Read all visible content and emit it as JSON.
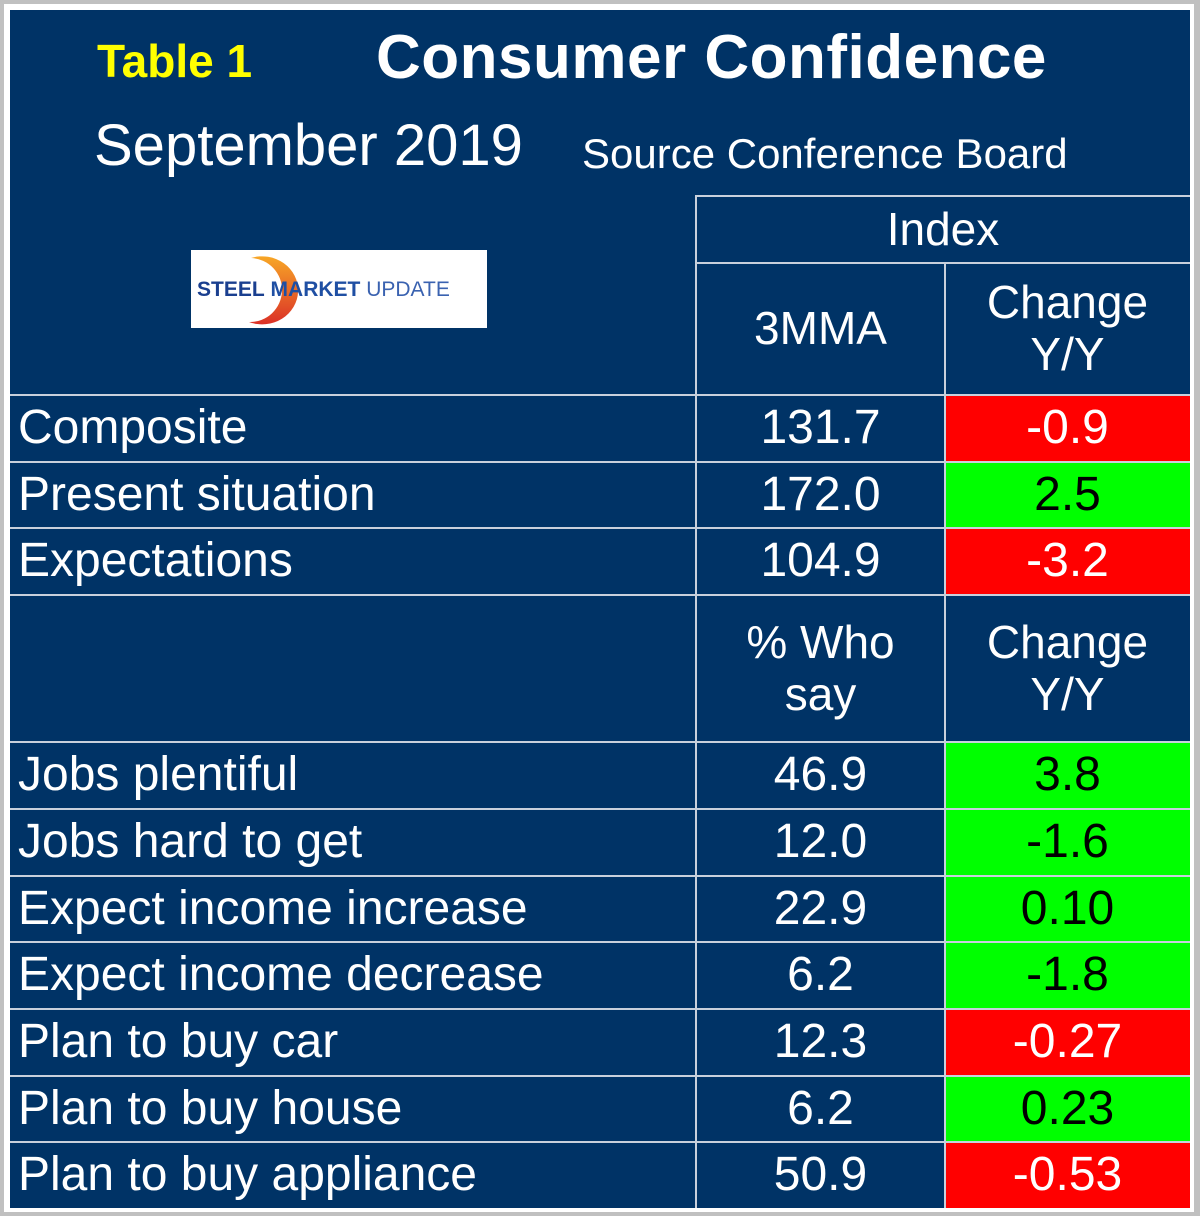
{
  "header": {
    "table_tag": "Table 1",
    "title": "Consumer Confidence",
    "period": "September 2019",
    "source": "Source Conference Board"
  },
  "logo": {
    "word1": "STEEL",
    "word2": "MARKET",
    "word3": "UPDATE",
    "swoosh_colors": [
      "#f7a21b",
      "#e0301e"
    ]
  },
  "colors": {
    "background": "#003366",
    "title_tag": "#ffff00",
    "negative": "#ff0000",
    "positive": "#00ff00"
  },
  "index_section": {
    "group_header": "Index",
    "col_value": "3MMA",
    "col_change": "Change\nY/Y",
    "rows": [
      {
        "label": "Composite",
        "value": "131.7",
        "change": "-0.9",
        "status": "negative"
      },
      {
        "label": "Present situation",
        "value": "172.0",
        "change": "2.5",
        "status": "positive"
      },
      {
        "label": "Expectations",
        "value": "104.9",
        "change": "-3.2",
        "status": "negative"
      }
    ]
  },
  "survey_section": {
    "col_value": "% Who\nsay",
    "col_change": "Change\nY/Y",
    "rows": [
      {
        "label": "Jobs plentiful",
        "value": "46.9",
        "change": "3.8",
        "status": "positive"
      },
      {
        "label": "Jobs hard to get",
        "value": "12.0",
        "change": "-1.6",
        "status": "positive"
      },
      {
        "label": "Expect income increase",
        "value": "22.9",
        "change": "0.10",
        "status": "positive"
      },
      {
        "label": "Expect income decrease",
        "value": "6.2",
        "change": "-1.8",
        "status": "positive"
      },
      {
        "label": "Plan to buy car",
        "value": "12.3",
        "change": "-0.27",
        "status": "negative"
      },
      {
        "label": "Plan to buy house",
        "value": "6.2",
        "change": "0.23",
        "status": "positive"
      },
      {
        "label": "Plan to buy appliance",
        "value": "50.9",
        "change": "-0.53",
        "status": "negative"
      }
    ]
  }
}
